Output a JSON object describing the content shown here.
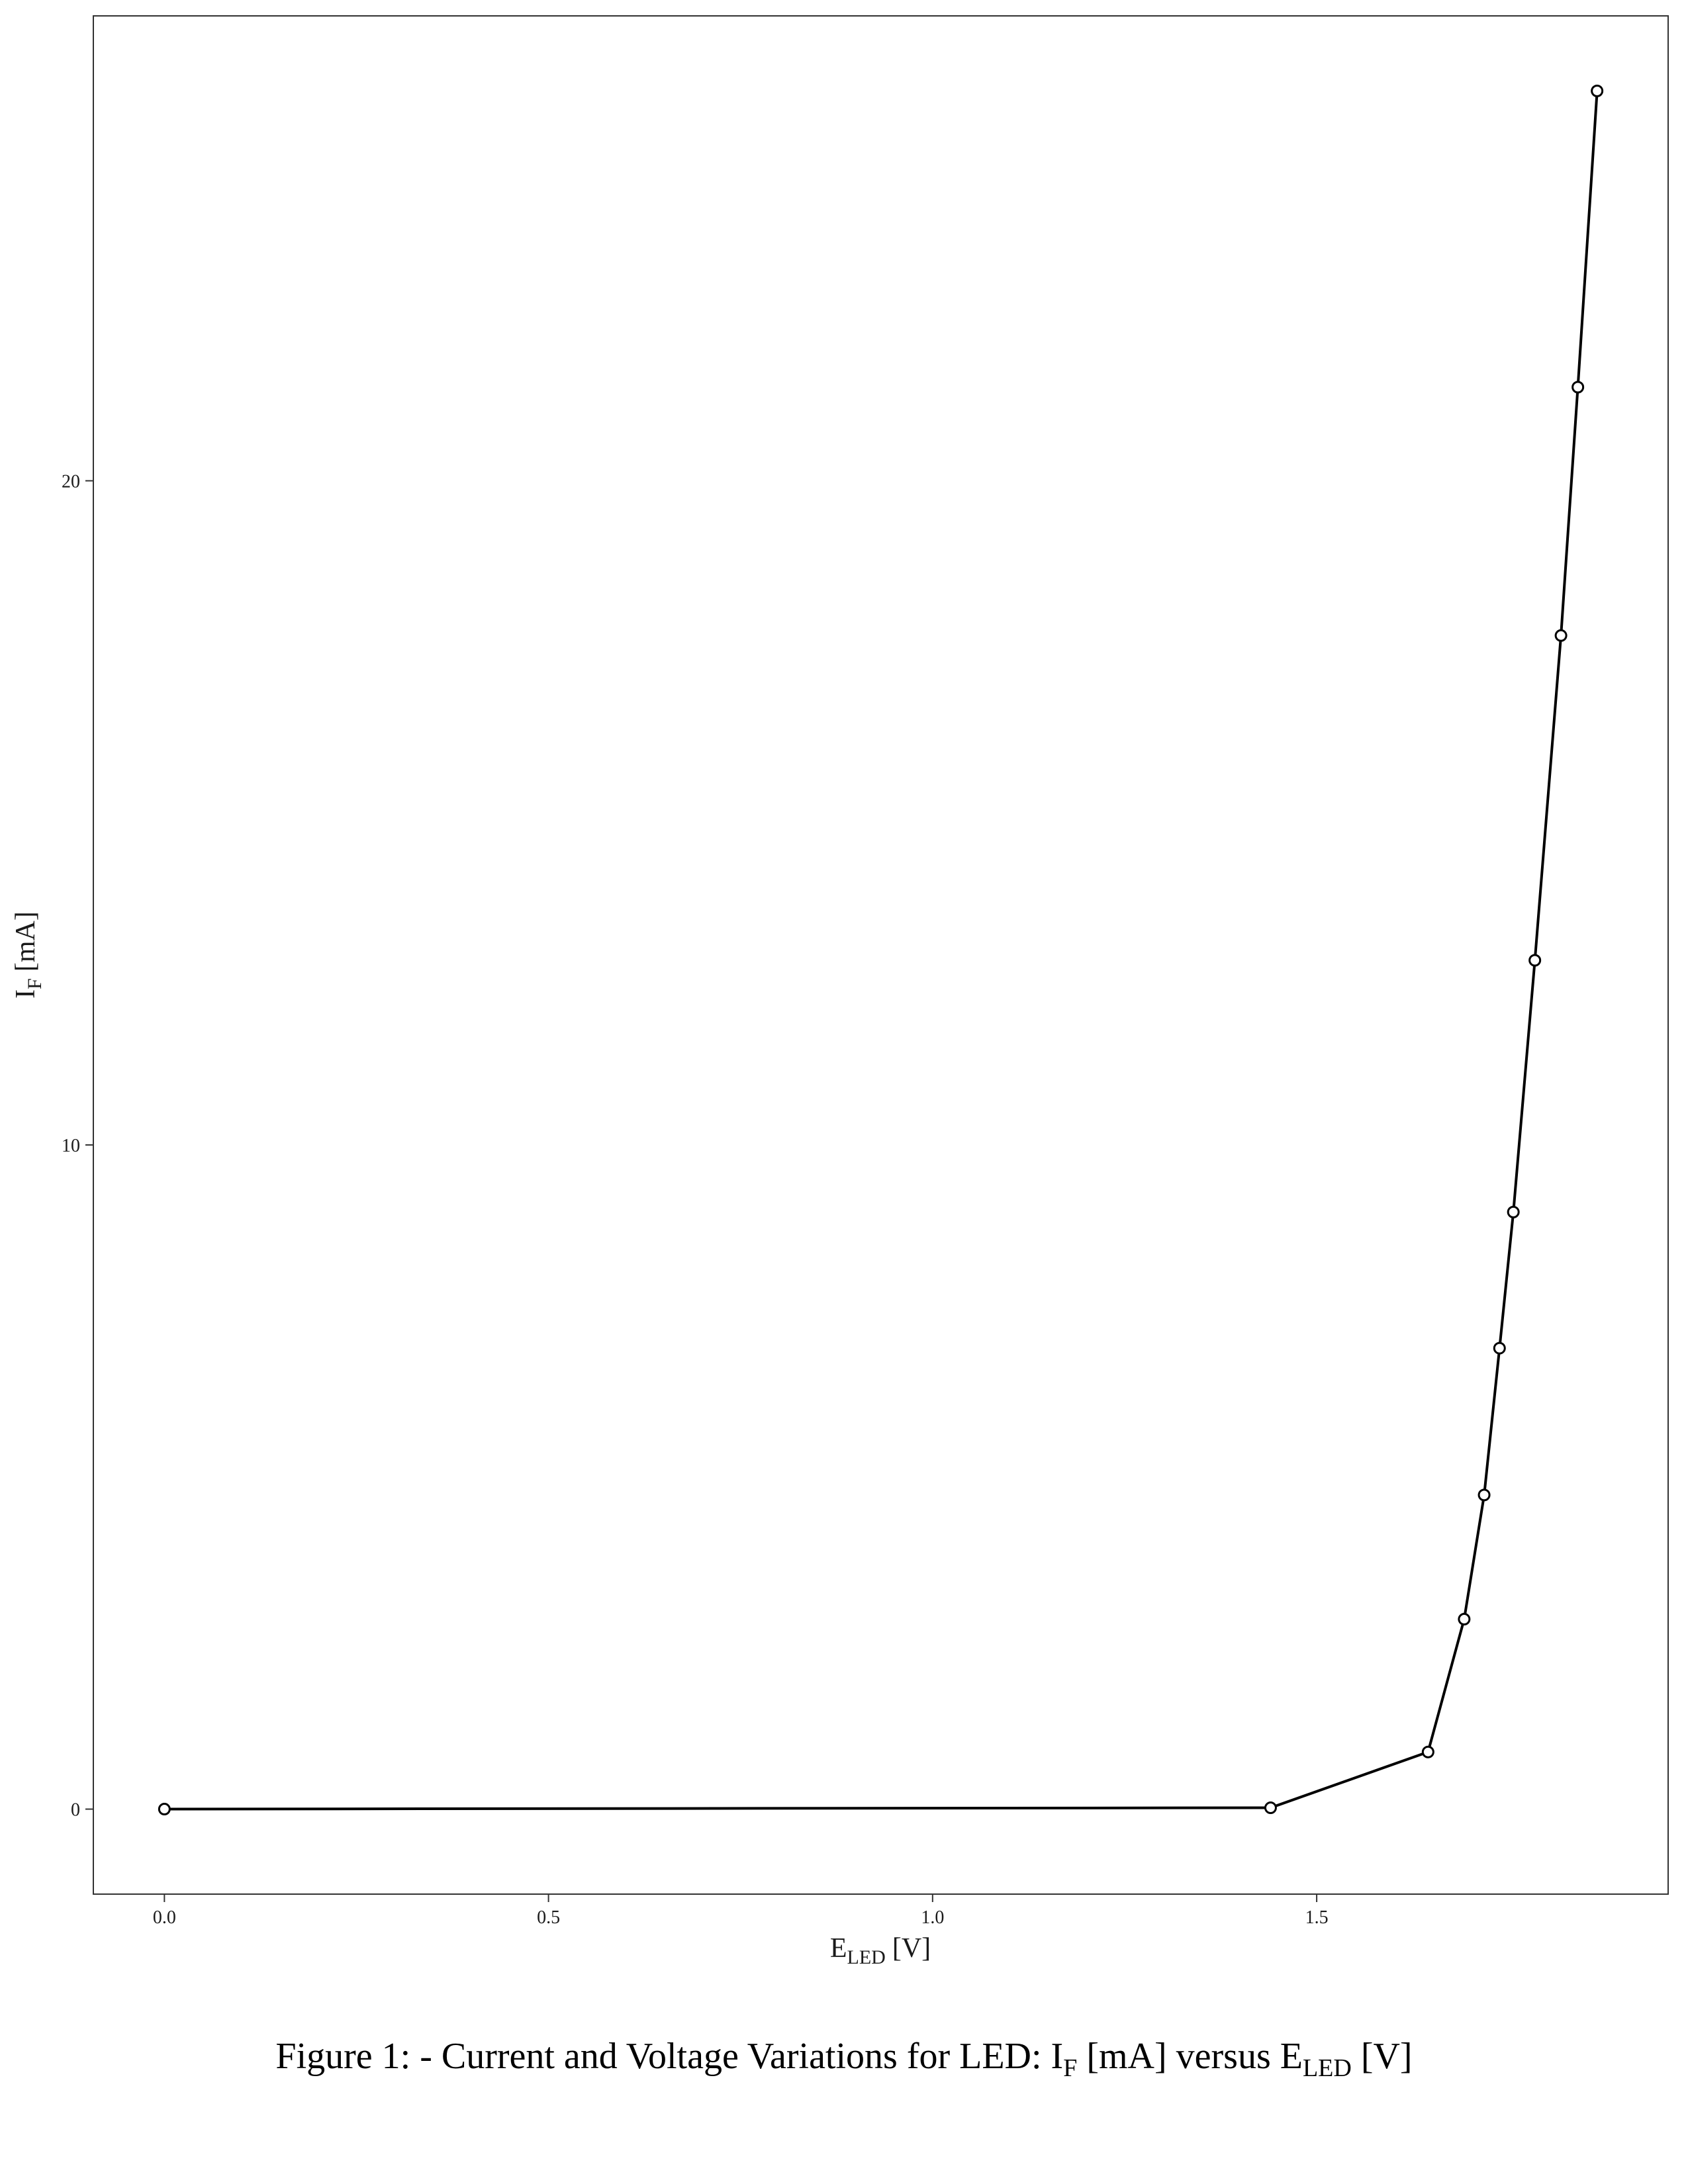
{
  "chart_data": {
    "type": "line",
    "markers": "open-circle",
    "xlabel": {
      "main": "E",
      "sub": "LED",
      "unit": "[V]"
    },
    "ylabel": {
      "main": "I",
      "sub": "F",
      "unit": "[mA]"
    },
    "xlim": [
      -0.0925,
      1.9575
    ],
    "ylim": [
      -1.28,
      27.0
    ],
    "x_ticks": [
      0.0,
      0.5,
      1.0,
      1.5
    ],
    "x_tick_labels": [
      "0.0",
      "0.5",
      "1.0",
      "1.5"
    ],
    "y_ticks": [
      0,
      10,
      20
    ],
    "y_tick_labels": [
      "0",
      "10",
      "20"
    ],
    "grid": false,
    "legend": "none",
    "series": [
      {
        "color": "#000000",
        "x": [
          0.0,
          1.44,
          1.645,
          1.692,
          1.718,
          1.738,
          1.756,
          1.784,
          1.818,
          1.84,
          1.865
        ],
        "y": [
          0.0,
          0.02,
          0.86,
          2.86,
          4.73,
          6.94,
          8.99,
          12.78,
          17.67,
          21.41,
          25.87
        ]
      }
    ]
  },
  "caption": {
    "prefix": "Figure 1: - Current and Voltage Variations for LED: I",
    "sub1": "F",
    "middle": " [mA] versus E",
    "sub2": "LED",
    "suffix": " [V]"
  }
}
